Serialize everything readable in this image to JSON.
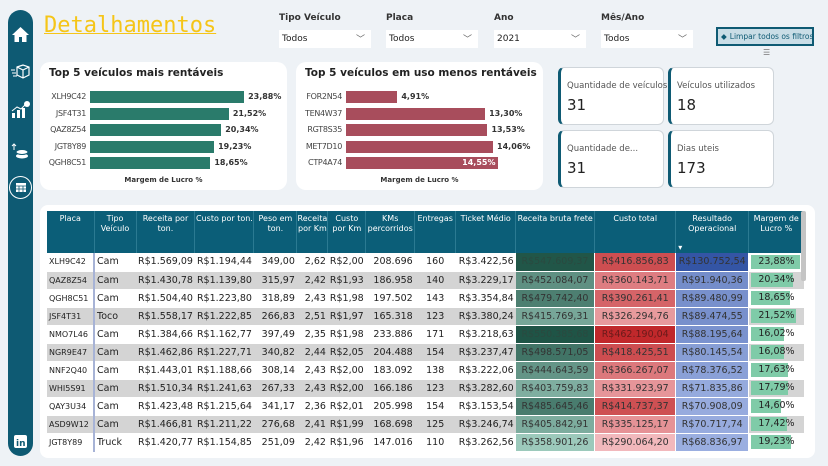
{
  "sidebar": {
    "icons": [
      "home-icon",
      "delivery-box-icon",
      "growth-chart-icon",
      "money-icon",
      "table-icon",
      "linkedin-icon"
    ]
  },
  "title": "Detalhamentos",
  "filters": [
    {
      "label": "Tipo Veículo",
      "value": "Todos"
    },
    {
      "label": "Placa",
      "value": "Todos"
    },
    {
      "label": "Ano",
      "value": "2021"
    },
    {
      "label": "Mês/Ano",
      "value": "Todos"
    }
  ],
  "clear_button": "Limpar todos os filtros",
  "chart_data": [
    {
      "type": "bar",
      "title": "Top 5 veículos mais rentáveis",
      "xlabel": "Margem de Lucro %",
      "categories": [
        "XLH9C42",
        "JSF4T31",
        "QAZ8Z54",
        "JGT8Y89",
        "QGH8C51"
      ],
      "values": [
        23.88,
        21.52,
        20.34,
        19.23,
        18.65
      ],
      "labels": [
        "23,88%",
        "21,52%",
        "20,34%",
        "19,23%",
        "18,65%"
      ],
      "color": "#2a7b6b"
    },
    {
      "type": "bar",
      "title": "Top 5 veículos em uso menos rentáveis",
      "xlabel": "Margem de Lucro %",
      "categories": [
        "FOR2N54",
        "TEN4W37",
        "RGT8S35",
        "MET7D10",
        "CTP4A74"
      ],
      "values": [
        4.91,
        13.3,
        13.53,
        14.06,
        14.55
      ],
      "labels": [
        "4,91%",
        "13,30%",
        "13,53%",
        "14,06%",
        "14,55%"
      ],
      "color": "#a84d5c"
    }
  ],
  "kpis": [
    {
      "label": "Quantidade de veículos",
      "value": "31"
    },
    {
      "label": "Veículos utilizados",
      "value": "18"
    },
    {
      "label": "Quantidade de...",
      "value": "31"
    },
    {
      "label": "Dias uteis",
      "value": "173"
    }
  ],
  "table": {
    "headers": [
      "Placa",
      "Tipo Veículo",
      "Receita por ton.",
      "Custo por ton.",
      "Peso em ton.",
      "Receita por Km",
      "Custo por Km",
      "KMs percorridos",
      "Entregas",
      "Ticket Médio",
      "Receita bruta frete",
      "Custo total",
      "Resultado Operacional",
      "Margem de Lucro %"
    ],
    "sort_column": "Resultado Operacional",
    "sort_direction": "desc",
    "heat_colors": {
      "receita": "#1f5446",
      "custo": "#c0282b",
      "resultado": "#3455a5",
      "margem_bar": "#7fcba8"
    },
    "rows": [
      [
        "XLH9C42",
        "Cam",
        "R$1.569,09",
        "R$1.194,44",
        "349,00",
        "2,62",
        "R$2,00",
        "208.696",
        "160",
        "R$3.422,56",
        "R$547.609,37",
        "R$416.856,83",
        "R$130.752,54",
        "23,88%"
      ],
      [
        "QAZ8Z54",
        "Cam",
        "R$1.430,78",
        "R$1.139,80",
        "315,97",
        "2,42",
        "R$1,93",
        "186.958",
        "140",
        "R$3.229,17",
        "R$452.084,07",
        "R$360.143,71",
        "R$91.940,36",
        "20,34%"
      ],
      [
        "QGH8C51",
        "Cam",
        "R$1.504,40",
        "R$1.223,80",
        "318,89",
        "2,43",
        "R$1,98",
        "197.502",
        "143",
        "R$3.354,84",
        "R$479.742,40",
        "R$390.261,41",
        "R$89.480,99",
        "18,65%"
      ],
      [
        "JSF4T31",
        "Toco",
        "R$1.558,17",
        "R$1.222,85",
        "266,83",
        "2,51",
        "R$1,97",
        "165.318",
        "123",
        "R$3.380,24",
        "R$415.769,31",
        "R$326.294,76",
        "R$89.474,55",
        "21,52%"
      ],
      [
        "NMO7L46",
        "Cam",
        "R$1.384,66",
        "R$1.162,77",
        "397,49",
        "2,35",
        "R$1,98",
        "233.886",
        "171",
        "R$3.218,63",
        "R$550.385,68",
        "R$462.190,04",
        "R$88.195,64",
        "16,02%"
      ],
      [
        "NGR9E47",
        "Cam",
        "R$1.462,86",
        "R$1.227,71",
        "340,82",
        "2,44",
        "R$2,05",
        "204.488",
        "154",
        "R$3.237,47",
        "R$498.571,05",
        "R$418.425,51",
        "R$80.145,54",
        "16,08%"
      ],
      [
        "NNF2Q40",
        "Cam",
        "R$1.443,01",
        "R$1.188,66",
        "308,14",
        "2,43",
        "R$2,00",
        "183.092",
        "138",
        "R$3.222,06",
        "R$444.643,59",
        "R$366.267,07",
        "R$78.376,52",
        "17,63%"
      ],
      [
        "WHI5S91",
        "Cam",
        "R$1.510,34",
        "R$1.241,63",
        "267,33",
        "2,43",
        "R$2,00",
        "166.186",
        "123",
        "R$3.282,60",
        "R$403.759,83",
        "R$331.923,97",
        "R$71.835,86",
        "17,79%"
      ],
      [
        "QAY3U34",
        "Cam",
        "R$1.423,48",
        "R$1.215,64",
        "341,17",
        "2,36",
        "R$2,01",
        "205.998",
        "154",
        "R$3.153,54",
        "R$485.645,46",
        "R$414.737,37",
        "R$70.908,09",
        "14,60%"
      ],
      [
        "ASD9W12",
        "Cam",
        "R$1.466,81",
        "R$1.211,22",
        "276,68",
        "2,41",
        "R$1,99",
        "168.698",
        "125",
        "R$3.246,74",
        "R$405.842,91",
        "R$335.125,17",
        "R$70.717,74",
        "17,42%"
      ],
      [
        "JGT8Y89",
        "Truck",
        "R$1.420,77",
        "R$1.154,85",
        "251,09",
        "2,42",
        "R$1,96",
        "147.016",
        "110",
        "R$3.262,56",
        "R$358.901,26",
        "R$290.064,20",
        "R$68.836,97",
        "19,23%"
      ]
    ]
  }
}
